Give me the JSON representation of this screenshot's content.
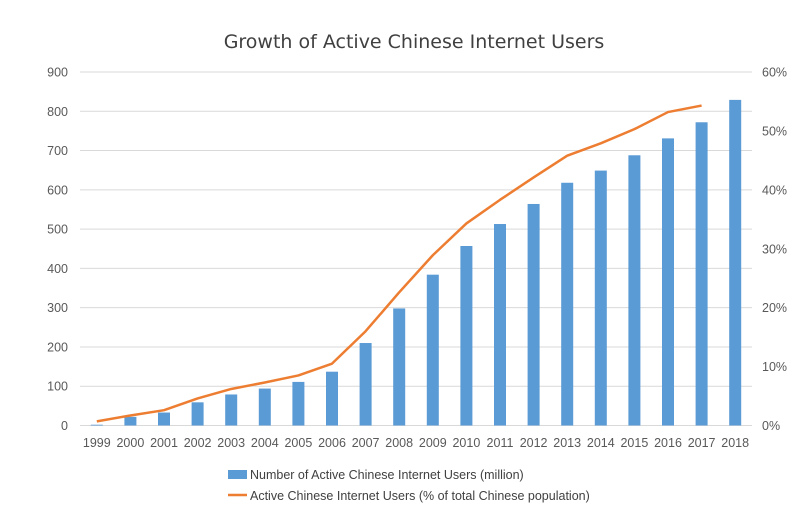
{
  "chart_data": {
    "type": "bar+line",
    "title": "Growth of Active Chinese Internet Users",
    "categories": [
      "1999",
      "2000",
      "2001",
      "2002",
      "2003",
      "2004",
      "2005",
      "2006",
      "2007",
      "2008",
      "2009",
      "2010",
      "2011",
      "2012",
      "2013",
      "2014",
      "2015",
      "2016",
      "2017",
      "2018"
    ],
    "series": [
      {
        "name": "Number of Active Chinese Internet Users (million)",
        "type": "bar",
        "axis": "left",
        "color": "#5B9BD5",
        "values": [
          2,
          22,
          33,
          59,
          79,
          94,
          111,
          137,
          210,
          298,
          384,
          457,
          513,
          564,
          618,
          649,
          688,
          731,
          772,
          829
        ]
      },
      {
        "name": "Active Chinese Internet Users (% of total Chinese population)",
        "type": "line",
        "axis": "right",
        "color": "#ED7D31",
        "values": [
          0.7,
          1.7,
          2.6,
          4.6,
          6.2,
          7.3,
          8.5,
          10.5,
          16.0,
          22.6,
          28.9,
          34.3,
          38.3,
          42.1,
          45.8,
          47.9,
          50.3,
          53.2,
          54.3,
          null
        ]
      }
    ],
    "y_left": {
      "range": [
        0,
        900
      ],
      "ticks": [
        "0",
        "100",
        "200",
        "300",
        "400",
        "500",
        "600",
        "700",
        "800",
        "900"
      ]
    },
    "y_right": {
      "range": [
        0,
        60
      ],
      "ticks": [
        "0%",
        "10%",
        "20%",
        "30%",
        "40%",
        "50%",
        "60%"
      ]
    },
    "grid": true,
    "legend_position": "bottom"
  }
}
